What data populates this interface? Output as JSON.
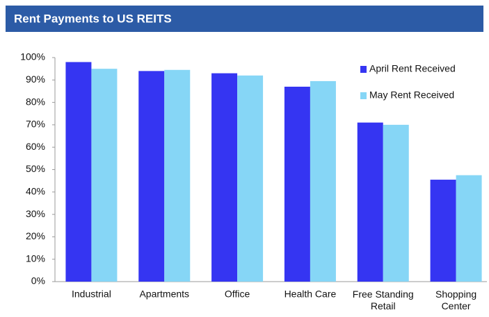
{
  "chart_data": {
    "type": "bar",
    "title": "Rent Payments to US REITS",
    "categories": [
      "Industrial",
      "Apartments",
      "Office",
      "Health Care",
      "Free Standing Retail",
      "Shopping Center"
    ],
    "series": [
      {
        "name": "April Rent Received",
        "color": "#3535f2",
        "values": [
          98,
          94,
          93,
          87,
          71,
          45.5
        ]
      },
      {
        "name": "May Rent Received",
        "color": "#86d6f6",
        "values": [
          95,
          94.5,
          92,
          89.5,
          70,
          47.5
        ]
      }
    ],
    "ylim": [
      0,
      100
    ],
    "yticks": [
      {
        "value": 0,
        "label": "0%"
      },
      {
        "value": 10,
        "label": "10%"
      },
      {
        "value": 20,
        "label": "20%"
      },
      {
        "value": 30,
        "label": "30%"
      },
      {
        "value": 40,
        "label": "40%"
      },
      {
        "value": 50,
        "label": "50%"
      },
      {
        "value": 60,
        "label": "60%"
      },
      {
        "value": 70,
        "label": "70%"
      },
      {
        "value": 80,
        "label": "80%"
      },
      {
        "value": 90,
        "label": "90%"
      },
      {
        "value": 100,
        "label": "100%"
      }
    ],
    "grid": false,
    "legend": "upper right"
  }
}
